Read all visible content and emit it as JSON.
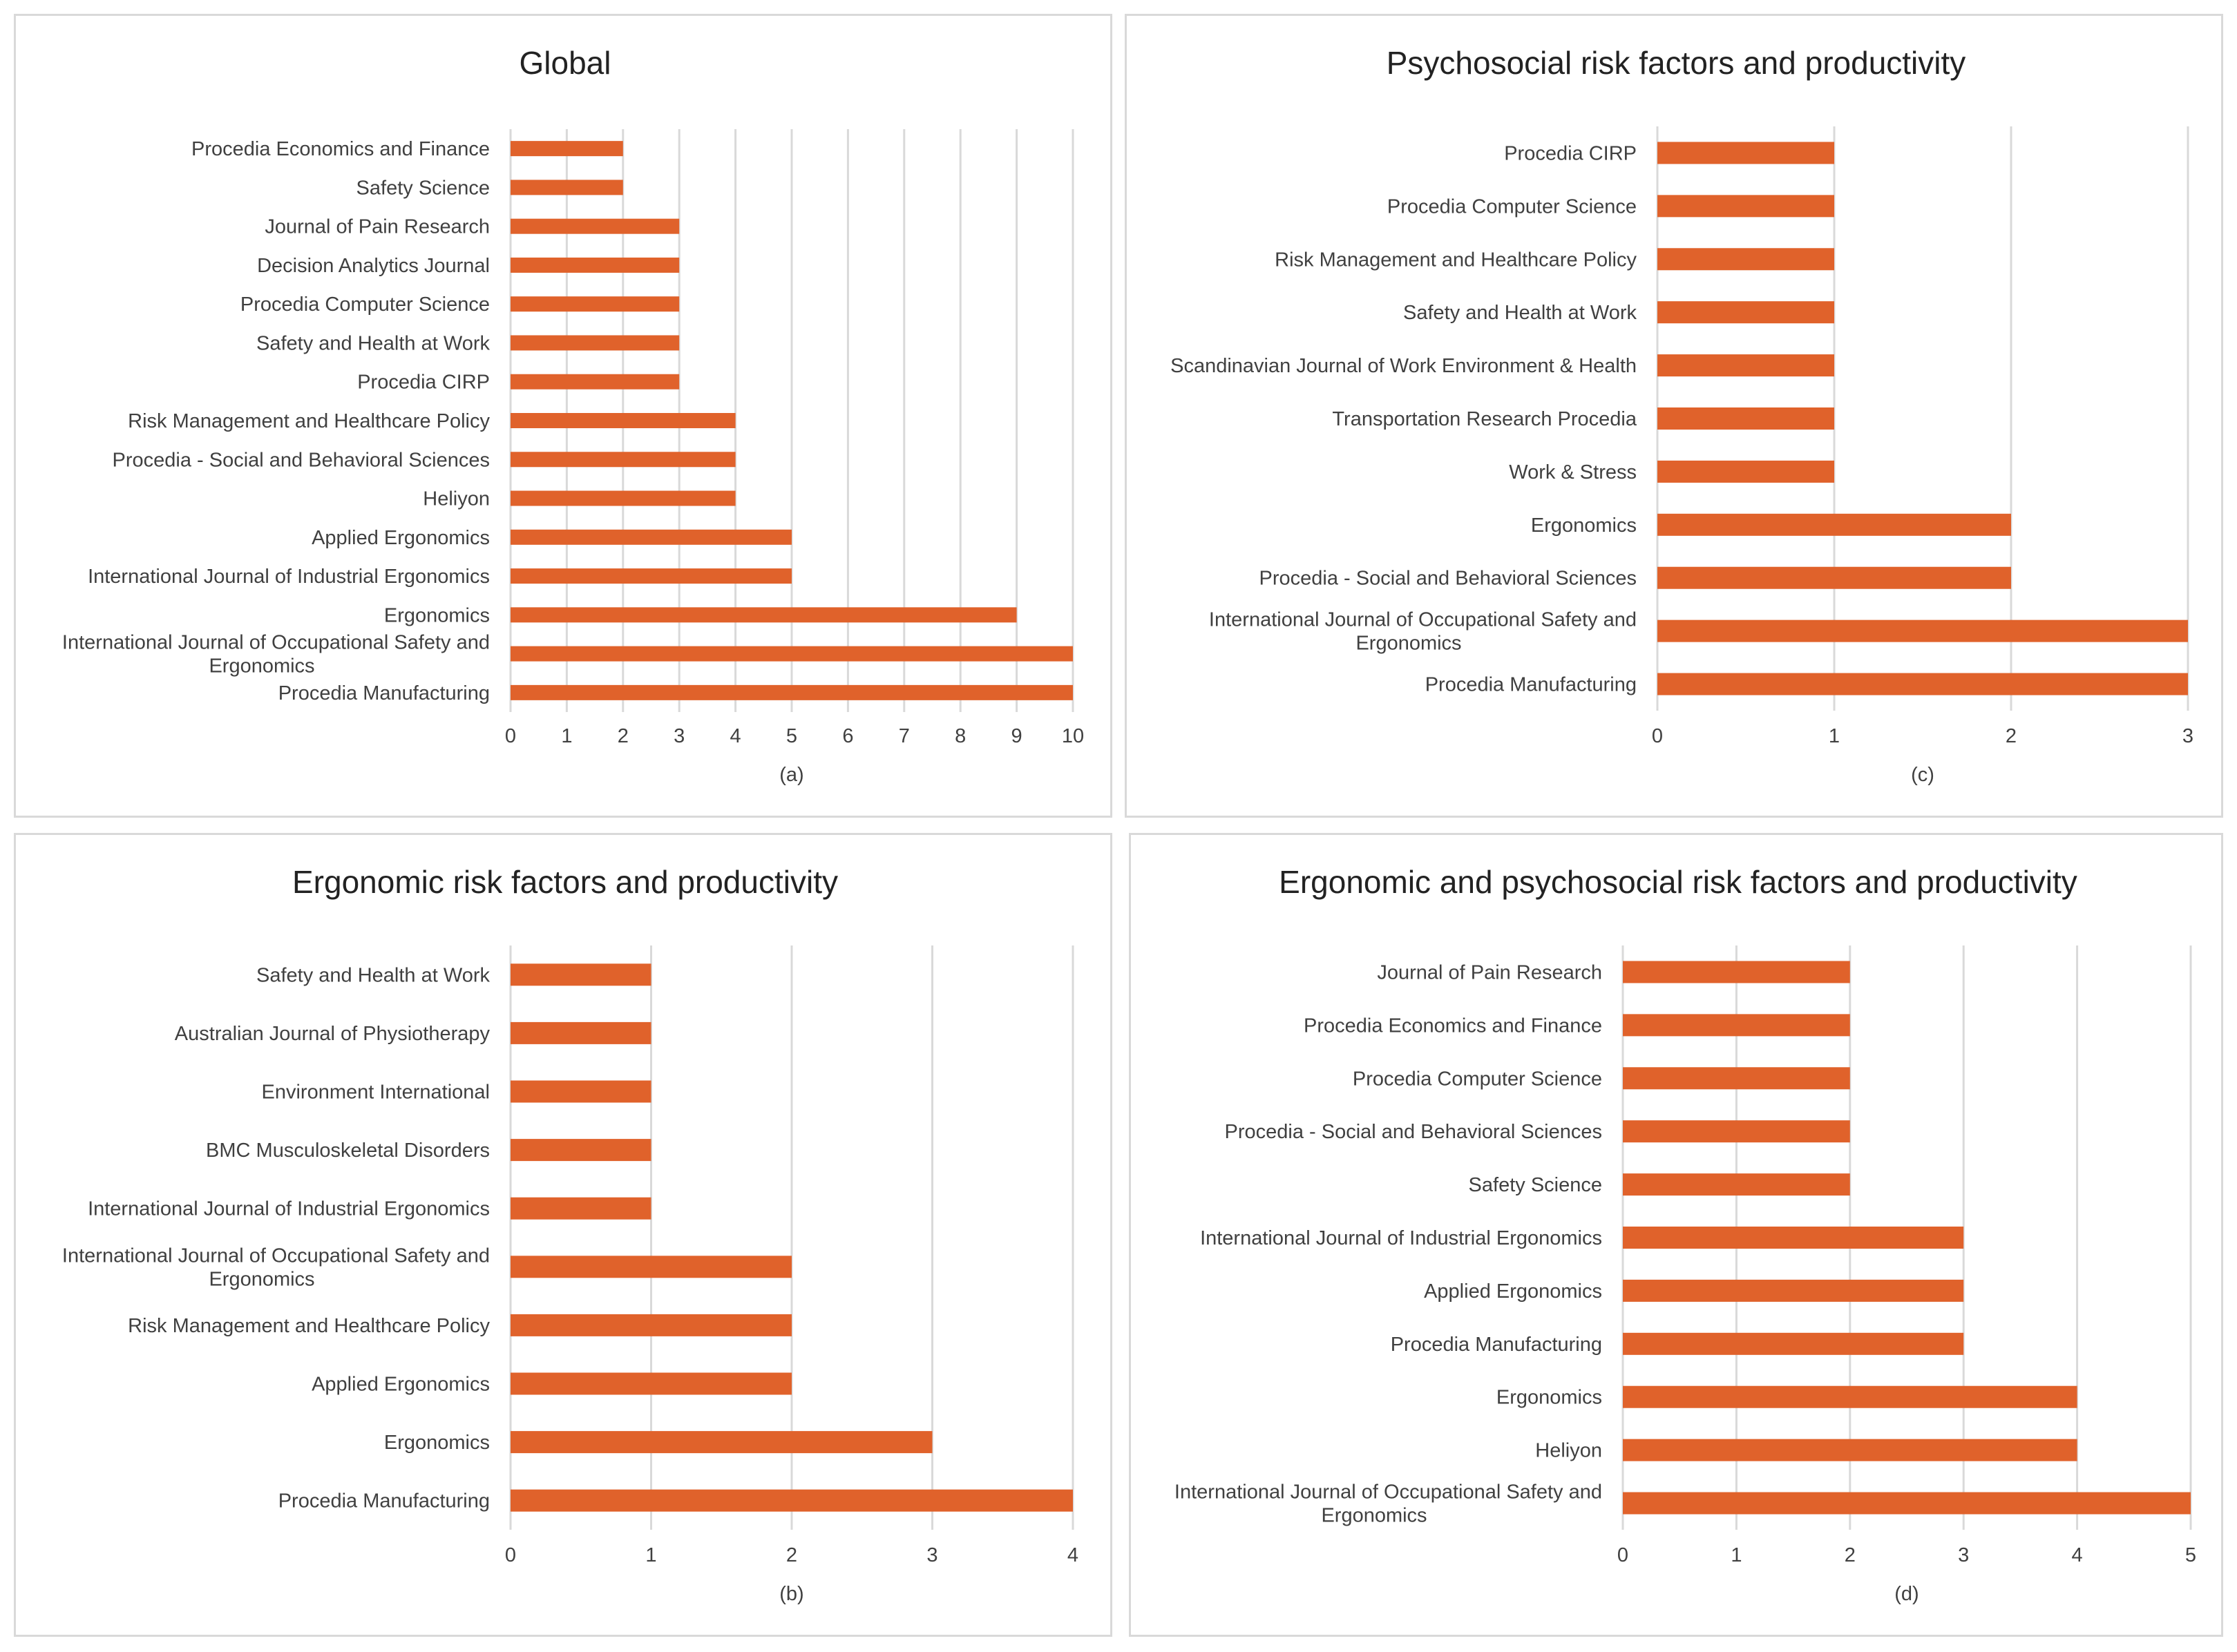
{
  "colors": {
    "bar": "#e0622b",
    "grid": "#d9d9d9",
    "text": "#404040",
    "title": "#222222"
  },
  "chart_data": [
    {
      "id": "a",
      "type": "bar",
      "orientation": "horizontal",
      "title": "Global",
      "caption": "(a)",
      "xlim": [
        0,
        10
      ],
      "ticks": [
        0,
        1,
        2,
        3,
        4,
        5,
        6,
        7,
        8,
        9,
        10
      ],
      "categories": [
        [
          "Procedia Economics and Finance"
        ],
        [
          "Safety Science"
        ],
        [
          "Journal of Pain Research"
        ],
        [
          "Decision Analytics Journal"
        ],
        [
          "Procedia Computer Science"
        ],
        [
          "Safety and Health at Work"
        ],
        [
          "Procedia CIRP"
        ],
        [
          "Risk Management and Healthcare Policy"
        ],
        [
          "Procedia - Social and Behavioral Sciences"
        ],
        [
          "Heliyon"
        ],
        [
          "Applied Ergonomics"
        ],
        [
          "International Journal of Industrial Ergonomics"
        ],
        [
          "Ergonomics"
        ],
        [
          "International Journal of Occupational Safety and",
          "Ergonomics"
        ],
        [
          "Procedia Manufacturing"
        ]
      ],
      "values": [
        2,
        2,
        3,
        3,
        3,
        3,
        3,
        4,
        4,
        4,
        5,
        5,
        9,
        10,
        10
      ]
    },
    {
      "id": "c",
      "type": "bar",
      "orientation": "horizontal",
      "title": "Psychosocial risk factors and productivity",
      "caption": "(c)",
      "xlim": [
        0,
        3
      ],
      "ticks": [
        0,
        1,
        2,
        3
      ],
      "categories": [
        [
          "Procedia CIRP"
        ],
        [
          "Procedia Computer Science"
        ],
        [
          "Risk Management and Healthcare Policy"
        ],
        [
          "Safety and Health at Work"
        ],
        [
          "Scandinavian Journal of Work Environment & Health"
        ],
        [
          "Transportation Research Procedia"
        ],
        [
          "Work & Stress"
        ],
        [
          "Ergonomics"
        ],
        [
          "Procedia - Social and Behavioral Sciences"
        ],
        [
          "International Journal of Occupational Safety and",
          "Ergonomics"
        ],
        [
          "Procedia Manufacturing"
        ]
      ],
      "values": [
        1,
        1,
        1,
        1,
        1,
        1,
        1,
        2,
        2,
        3,
        3
      ]
    },
    {
      "id": "b",
      "type": "bar",
      "orientation": "horizontal",
      "title": "Ergonomic risk factors and productivity",
      "caption": "(b)",
      "xlim": [
        0,
        4
      ],
      "ticks": [
        0,
        1,
        2,
        3,
        4
      ],
      "categories": [
        [
          "Safety and Health at Work"
        ],
        [
          "Australian Journal of Physiotherapy"
        ],
        [
          "Environment International"
        ],
        [
          "BMC Musculoskeletal Disorders"
        ],
        [
          "International Journal of Industrial Ergonomics"
        ],
        [
          "International Journal of Occupational Safety and",
          "Ergonomics"
        ],
        [
          "Risk Management and Healthcare Policy"
        ],
        [
          "Applied Ergonomics"
        ],
        [
          "Ergonomics"
        ],
        [
          "Procedia Manufacturing"
        ]
      ],
      "values": [
        1,
        1,
        1,
        1,
        1,
        2,
        2,
        2,
        3,
        4
      ]
    },
    {
      "id": "d",
      "type": "bar",
      "orientation": "horizontal",
      "title": "Ergonomic and psychosocial risk factors and productivity",
      "caption": "(d)",
      "xlim": [
        0,
        5
      ],
      "ticks": [
        0,
        1,
        2,
        3,
        4,
        5
      ],
      "categories": [
        [
          "Journal of Pain Research"
        ],
        [
          "Procedia Economics and Finance"
        ],
        [
          "Procedia Computer Science"
        ],
        [
          "Procedia - Social and Behavioral Sciences"
        ],
        [
          "Safety Science"
        ],
        [
          "International Journal of Industrial Ergonomics"
        ],
        [
          "Applied Ergonomics"
        ],
        [
          "Procedia Manufacturing"
        ],
        [
          "Ergonomics"
        ],
        [
          "Heliyon"
        ],
        [
          "International Journal of Occupational Safety and",
          "Ergonomics"
        ]
      ],
      "values": [
        2,
        2,
        2,
        2,
        2,
        3,
        3,
        3,
        4,
        4,
        5
      ]
    }
  ]
}
